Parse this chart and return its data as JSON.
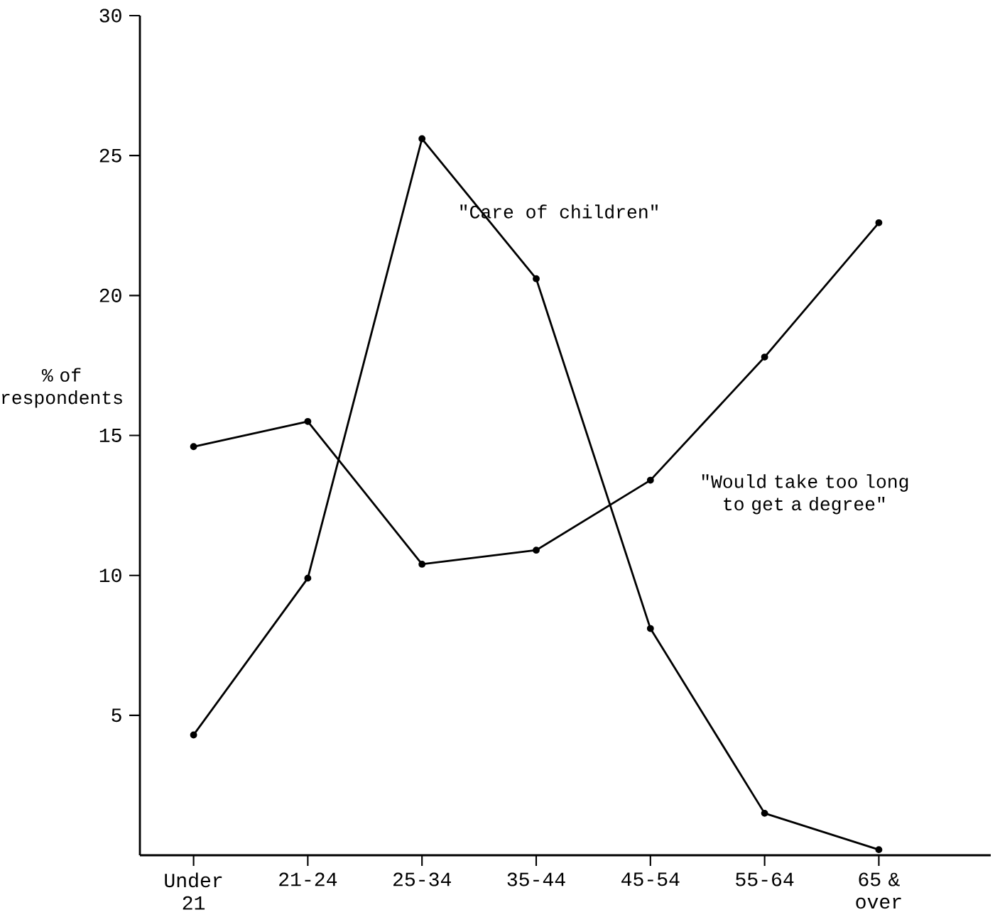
{
  "chart_data": {
    "type": "line",
    "ylabel": "% of respondents",
    "categories": [
      "Under 21",
      "21-24",
      "25-34",
      "35-44",
      "45-54",
      "55-64",
      "65 & over"
    ],
    "series": [
      {
        "name": "\"Care of children\"",
        "color": "#000000",
        "values": [
          4.3,
          9.9,
          25.6,
          20.6,
          8.1,
          1.5,
          0.2
        ]
      },
      {
        "name": "\"Would take too long to get a degree\"",
        "color": "#000000",
        "values": [
          14.6,
          15.5,
          10.4,
          10.9,
          13.4,
          17.8,
          22.6
        ]
      }
    ],
    "ylim": [
      0,
      30
    ],
    "yticks": [
      5,
      10,
      15,
      20,
      25,
      30
    ],
    "marker": "circle",
    "legend": false,
    "grid": false
  }
}
